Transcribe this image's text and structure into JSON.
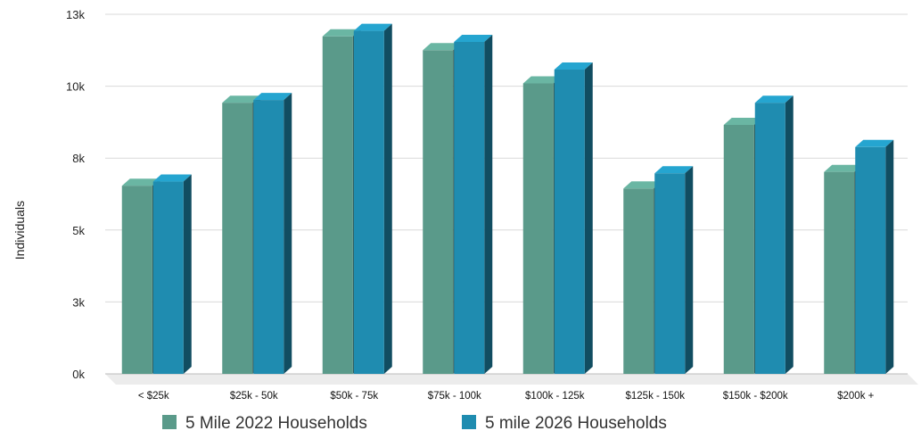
{
  "chart_data": {
    "type": "bar",
    "ylabel": "Individuals",
    "xlabel": "",
    "ylim": [
      0,
      13000
    ],
    "yticks": [
      {
        "value": 0,
        "label": "0k"
      },
      {
        "value": 2600,
        "label": "3k"
      },
      {
        "value": 5200,
        "label": "5k"
      },
      {
        "value": 7800,
        "label": "8k"
      },
      {
        "value": 10400,
        "label": "10k"
      },
      {
        "value": 13000,
        "label": "13k"
      }
    ],
    "categories": [
      "< $25k",
      "$25k - 50k",
      "$50k - 75k",
      "$75k - 100k",
      "$100k - 125k",
      "$125k - 150k",
      "$150k - $200k",
      "$200k  +"
    ],
    "series": [
      {
        "name": "5 Mile 2022 Households",
        "color": "#5a9a8a",
        "values": [
          6800,
          9800,
          12200,
          11700,
          10500,
          6700,
          9000,
          7300
        ]
      },
      {
        "name": "5 mile 2026 Households",
        "color": "#1f8cb0",
        "values": [
          6950,
          9900,
          12400,
          12000,
          11000,
          7250,
          9800,
          8200
        ]
      }
    ],
    "grid": true,
    "legend": "bottom"
  }
}
